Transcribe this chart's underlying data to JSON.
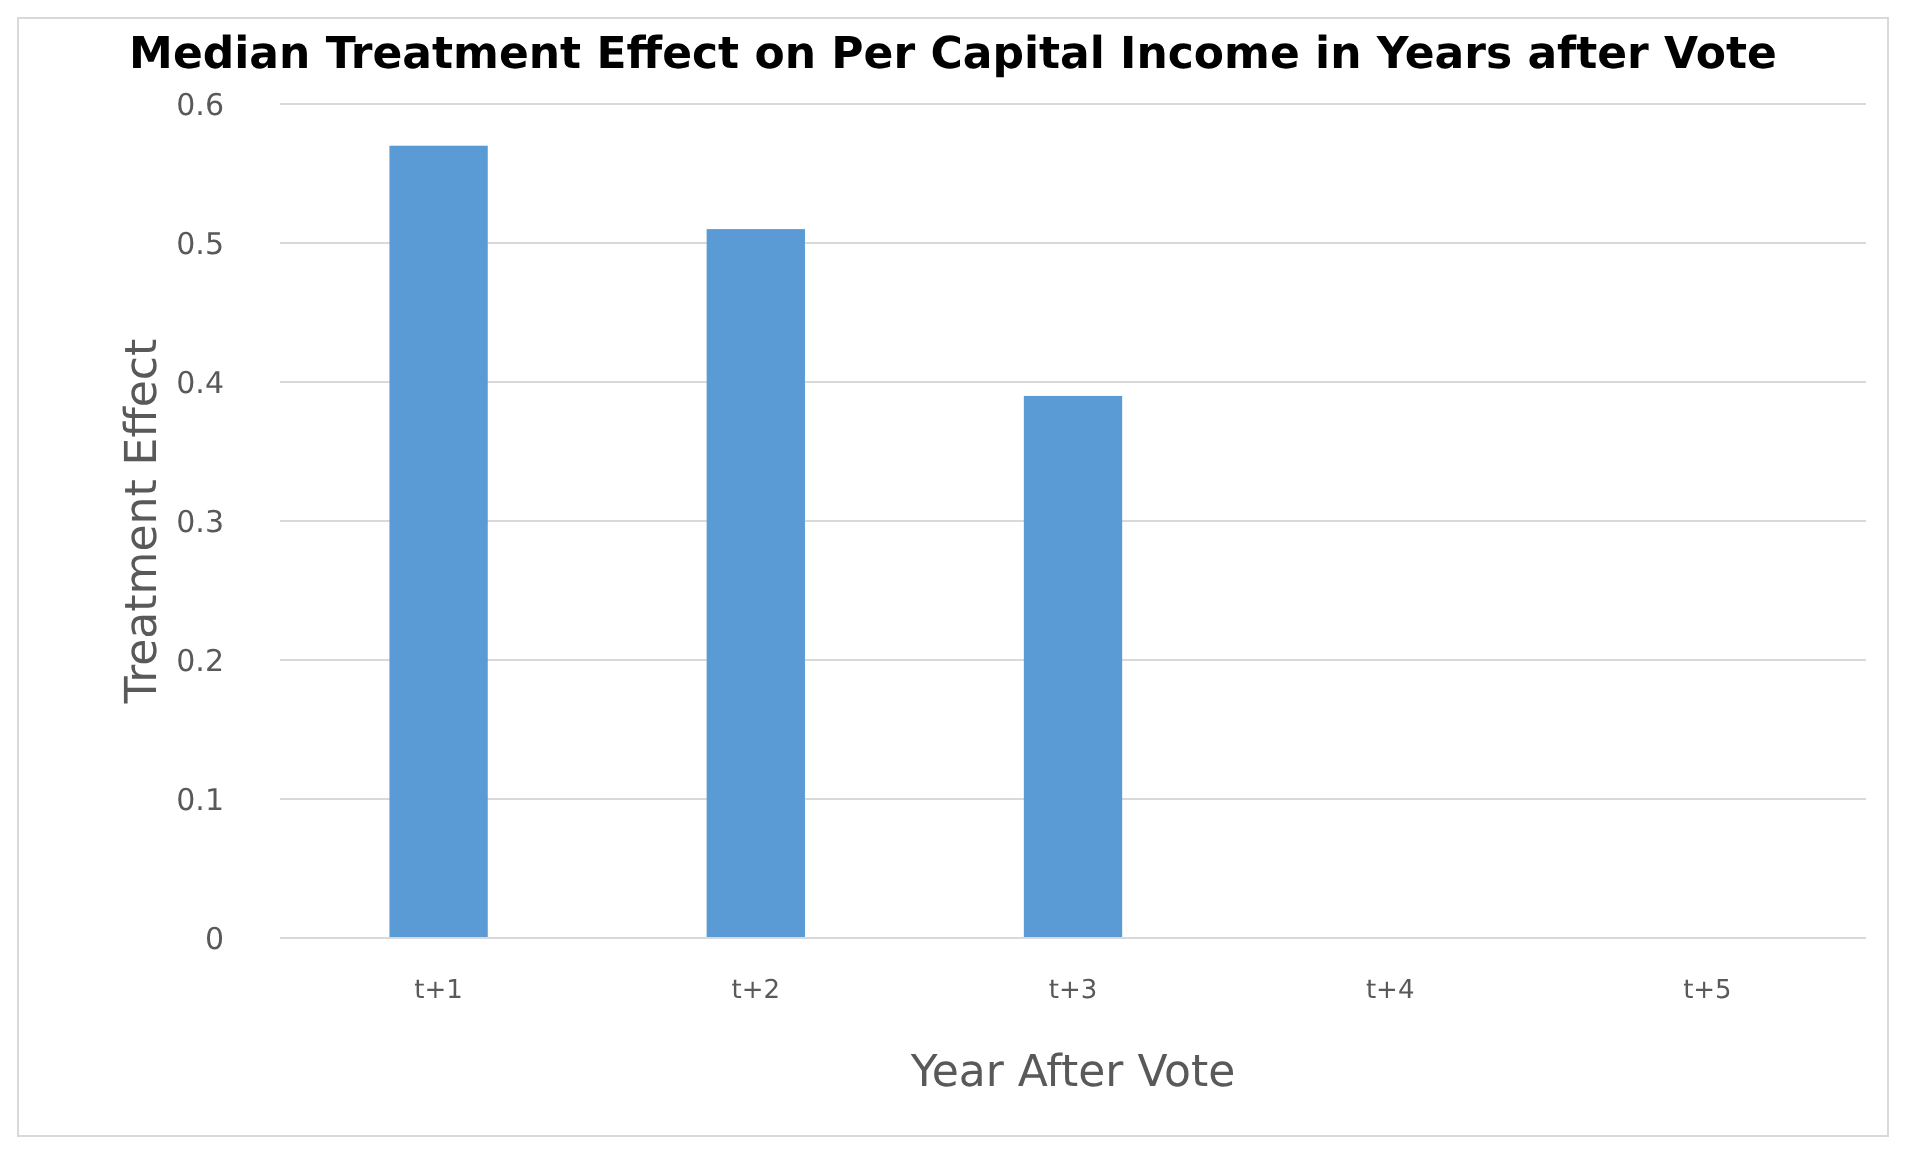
{
  "chart_data": {
    "type": "bar",
    "title": "Median Treatment Effect on Per Capital Income in Years after Vote",
    "xlabel": "Year After Vote",
    "ylabel": "Treatment Effect",
    "categories": [
      "t+1",
      "t+2",
      "t+3",
      "t+4",
      "t+5"
    ],
    "values": [
      0.57,
      0.51,
      0.39,
      0,
      0
    ],
    "color": "#5b9bd5",
    "ylim": [
      0,
      0.6
    ],
    "yticks": [
      0,
      0.1,
      0.2,
      0.3,
      0.4,
      0.5,
      0.6
    ],
    "grid": "y"
  }
}
